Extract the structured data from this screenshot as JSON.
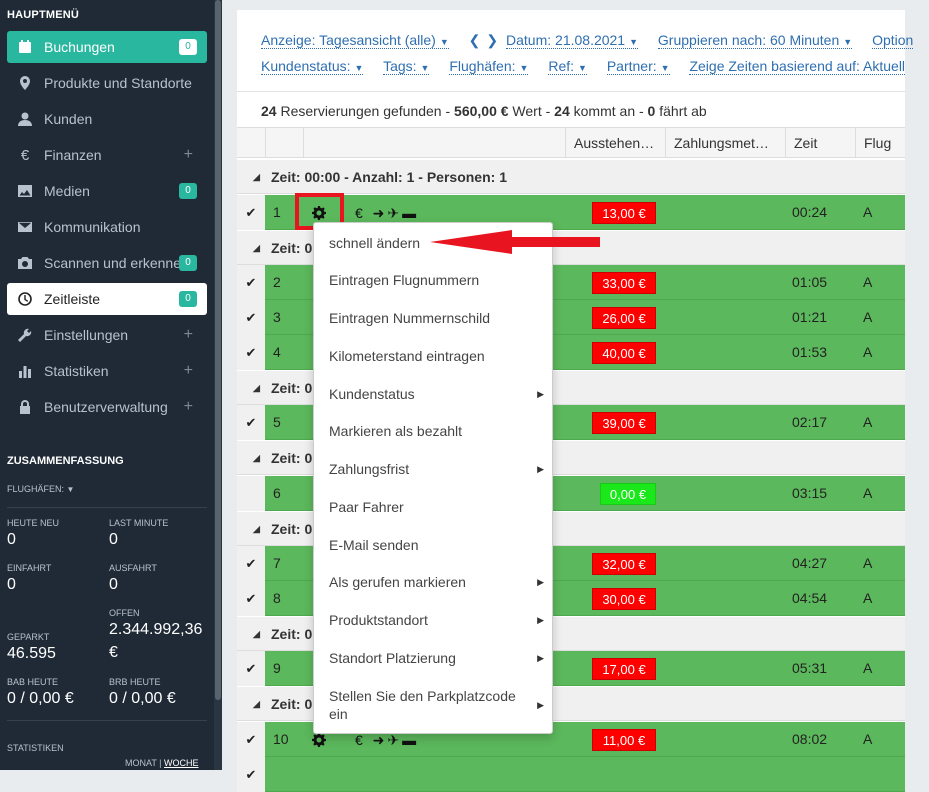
{
  "sidebar": {
    "heading": "HAUPTMENÜ",
    "items": [
      {
        "label": "Buchungen",
        "badge": "0",
        "icon": "calendar-icon"
      },
      {
        "label": "Produkte und Standorte",
        "icon": "map-marker-icon"
      },
      {
        "label": "Kunden",
        "icon": "user-icon"
      },
      {
        "label": "Finanzen",
        "plus": "+",
        "icon": "euro-icon"
      },
      {
        "label": "Medien",
        "badge": "0",
        "icon": "image-icon"
      },
      {
        "label": "Kommunikation",
        "icon": "envelope-icon"
      },
      {
        "label": "Scannen und erkennen",
        "badge": "0",
        "icon": "camera-icon"
      },
      {
        "label": "Zeitleiste",
        "badge": "0",
        "icon": "clock-icon"
      },
      {
        "label": "Einstellungen",
        "plus": "+",
        "icon": "wrench-icon"
      },
      {
        "label": "Statistiken",
        "plus": "+",
        "icon": "bar-chart-icon"
      },
      {
        "label": "Benutzerverwaltung",
        "plus": "+",
        "icon": "lock-icon"
      }
    ],
    "summary_heading": "ZUSAMMENFASSUNG",
    "flughafen_label": "FLUGHÄFEN:",
    "stats": {
      "heute_neu_label": "HEUTE NEU",
      "heute_neu": "0",
      "last_minute_label": "LAST MINUTE",
      "last_minute": "0",
      "einfahrt_label": "EINFAHRT",
      "einfahrt": "0",
      "ausfahrt_label": "AUSFAHRT",
      "ausfahrt": "0",
      "offen_label": "OFFEN",
      "offen": "2.344.992,36",
      "offen_currency": "€",
      "geparkt_label": "GEPARKT",
      "geparkt": "46.595",
      "bab_label": "BAB HEUTE",
      "bab": "0 / 0,00 €",
      "brb_label": "BRB HEUTE",
      "brb": "0 / 0,00 €"
    },
    "statistiken_label": "STATISTIKEN",
    "monat": "MONAT",
    "woche": "WOCHE"
  },
  "toolbar": {
    "row1": [
      "Anzeige: Tagesansicht (alle)",
      "Datum: 21.08.2021",
      "Gruppieren nach: 60 Minuten",
      "Option"
    ],
    "row2": [
      "Kundenstatus:",
      "Tags:",
      "Flughäfen:",
      "Ref:",
      "Partner:",
      "Zeige Zeiten basierend auf: Aktuell"
    ]
  },
  "summary": {
    "count": "24",
    "found": "Reservierungen gefunden -",
    "value": "560,00 €",
    "value_label": "Wert -",
    "arriving": "24",
    "arriving_label": "kommt an -",
    "leaving": "0",
    "leaving_label": "fährt ab"
  },
  "columns": [
    "Ausstehen…",
    "Zahlungsmet…",
    "Zeit",
    "Flug"
  ],
  "groups": [
    {
      "label": "Zeit: 00:00 - Anzahl: 1 - Personen: 1"
    },
    {
      "label": "Zeit: 0"
    },
    {
      "label": "Zeit: 0"
    },
    {
      "label": "Zeit: 0"
    },
    {
      "label": "Zeit: 0"
    },
    {
      "label": "Zeit: 0"
    },
    {
      "label": "Zeit: 0"
    }
  ],
  "rows": [
    {
      "num": "1",
      "amount": "13,00 €",
      "time": "00:24",
      "flug": "A"
    },
    {
      "num": "2",
      "amount": "33,00 €",
      "time": "01:05",
      "flug": "A"
    },
    {
      "num": "3",
      "amount": "26,00 €",
      "time": "01:21",
      "flug": "A"
    },
    {
      "num": "4",
      "amount": "40,00 €",
      "time": "01:53",
      "flug": "A"
    },
    {
      "num": "5",
      "amount": "39,00 €",
      "time": "02:17",
      "flug": "A"
    },
    {
      "num": "6",
      "amount": "0,00 €",
      "time": "03:15",
      "flug": "A"
    },
    {
      "num": "7",
      "amount": "32,00 €",
      "time": "04:27",
      "flug": "A"
    },
    {
      "num": "8",
      "amount": "30,00 €",
      "time": "04:54",
      "flug": "A"
    },
    {
      "num": "9",
      "amount": "17,00 €",
      "time": "05:31",
      "flug": "A"
    },
    {
      "num": "10",
      "amount": "11,00 €",
      "time": "08:02",
      "flug": "A"
    }
  ],
  "context_menu": [
    {
      "label": "schnell ändern"
    },
    {
      "label": "Eintragen Flugnummern"
    },
    {
      "label": "Eintragen Nummernschild"
    },
    {
      "label": "Kilometerstand eintragen"
    },
    {
      "label": "Kundenstatus",
      "submenu": true
    },
    {
      "label": "Markieren als bezahlt"
    },
    {
      "label": "Zahlungsfrist",
      "submenu": true
    },
    {
      "label": "Paar Fahrer"
    },
    {
      "label": "E-Mail senden"
    },
    {
      "label": "Als gerufen markieren",
      "submenu": true
    },
    {
      "label": "Produktstandort",
      "submenu": true
    },
    {
      "label": "Standort Platzierung",
      "submenu": true
    },
    {
      "label": "Stellen Sie den Parkplatzcode ein",
      "submenu": true
    }
  ],
  "colors": {
    "sidebar_bg": "#1f2a36",
    "accent": "#2ab7a0",
    "row_green": "#5cb85c",
    "amount_red": "#ff0000",
    "amount_green": "#1be81b",
    "highlight_red": "#e8141f"
  }
}
